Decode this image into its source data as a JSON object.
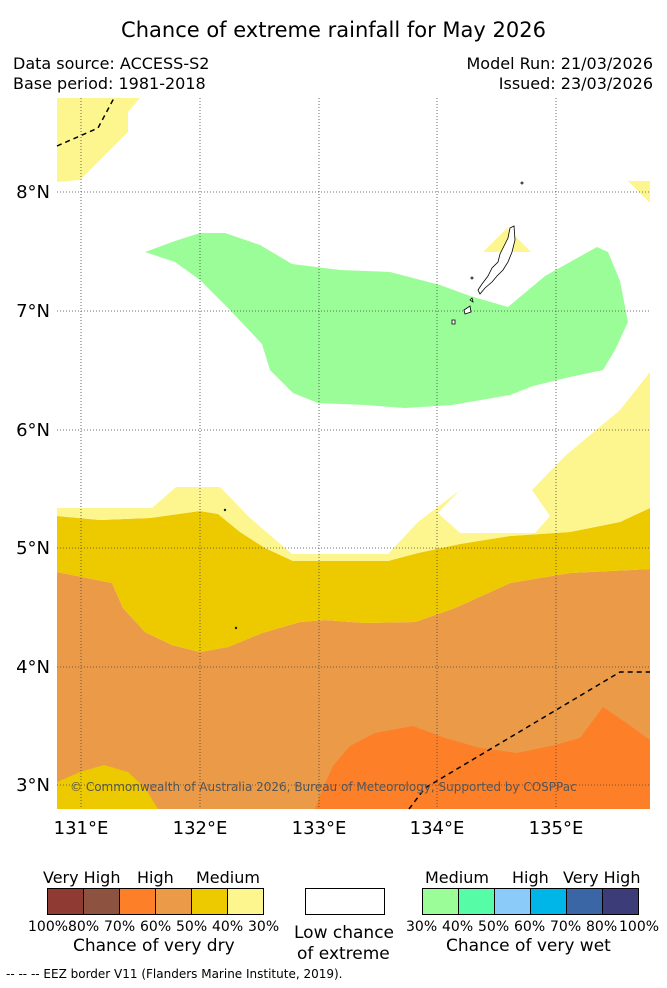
{
  "title": "Chance of extreme rainfall for May 2026",
  "meta": {
    "data_source": "Data source: ACCESS-S2",
    "base_period": "Base period: 1981-2018",
    "model_run": "Model Run: 21/03/2026",
    "issued": "Issued: 23/03/2026"
  },
  "map": {
    "lat_labels": [
      "8°N",
      "7°N",
      "6°N",
      "5°N",
      "4°N",
      "3°N"
    ],
    "lon_labels": [
      "131°E",
      "132°E",
      "133°E",
      "134°E",
      "135°E"
    ],
    "copyright": "© Commonwealth of Australia 2026, Bureau of Meteorology, Supported by COSPPac",
    "colors": {
      "light_yellow": "#fdf68e",
      "yellow": "#edc900",
      "light_orange": "#eb9b48",
      "orange": "#fd7f27",
      "light_green": "#9afd98"
    }
  },
  "legend": {
    "dry": {
      "categories": [
        "Very High",
        "High",
        "Medium"
      ],
      "percents": [
        "100%",
        "80%",
        "70%",
        "60%",
        "50%",
        "40%",
        "30%"
      ],
      "caption": "Chance of very dry",
      "colors": [
        "#8f3a33",
        "#8e5241",
        "#fd7f27",
        "#eb9b48",
        "#edc900",
        "#fdf68e"
      ]
    },
    "neutral": {
      "caption_line1": "Low chance",
      "caption_line2": "of extreme",
      "color": "#ffffff"
    },
    "wet": {
      "categories": [
        "Medium",
        "High",
        "Very High"
      ],
      "percents": [
        "30%",
        "40%",
        "50%",
        "60%",
        "70%",
        "80%",
        "100%"
      ],
      "caption": "Chance of very wet",
      "colors": [
        "#9afd98",
        "#57fda6",
        "#8acbfa",
        "#00b5e8",
        "#3a66a6",
        "#3c3d78"
      ]
    }
  },
  "footnote": "-- -- -- EEZ border V11 (Flanders Marine Institute, 2019)."
}
